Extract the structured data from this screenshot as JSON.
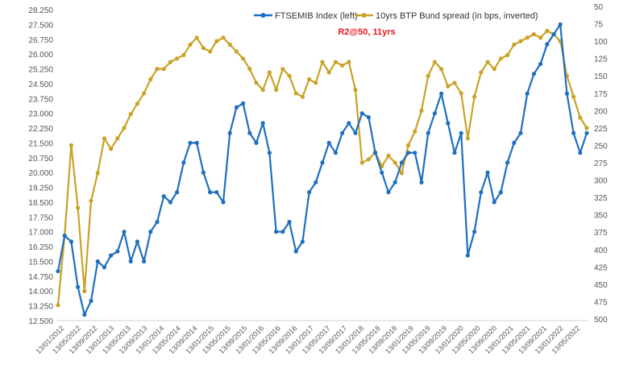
{
  "chart_data": {
    "type": "line",
    "title": "",
    "annotation": "R2@50, 11yrs",
    "x_tick_labels": [
      "13/01/2012",
      "13/05/2012",
      "13/09/2012",
      "13/01/2013",
      "13/05/2013",
      "13/09/2013",
      "13/01/2014",
      "13/05/2014",
      "13/09/2014",
      "13/01/2015",
      "13/05/2015",
      "13/09/2015",
      "13/01/2016",
      "13/05/2016",
      "13/09/2016",
      "13/01/2017",
      "13/05/2017",
      "13/09/2017",
      "13/01/2018",
      "13/05/2018",
      "13/09/2018",
      "13/01/2019",
      "13/05/2019",
      "13/09/2019",
      "13/01/2020",
      "13/05/2020",
      "13/09/2020",
      "13/01/2021",
      "13/05/2021",
      "13/09/2021",
      "13/01/2022",
      "13/05/2022"
    ],
    "y_left": {
      "min": 12500,
      "max": 28250,
      "step": 750,
      "tick_labels": [
        "12.500",
        "13.250",
        "14.000",
        "14.750",
        "15.500",
        "16.250",
        "17.000",
        "17.750",
        "18.500",
        "19.250",
        "20.000",
        "20.750",
        "21.500",
        "22.250",
        "23.000",
        "23.750",
        "24.500",
        "25.250",
        "26.000",
        "26.750",
        "27.500",
        "28.250"
      ]
    },
    "y_right": {
      "min": 50,
      "max": 500,
      "step": 25,
      "inverted": true,
      "tick_labels": [
        "50",
        "75",
        "100",
        "125",
        "150",
        "175",
        "200",
        "225",
        "250",
        "275",
        "300",
        "325",
        "350",
        "375",
        "400",
        "425",
        "450",
        "475",
        "500"
      ]
    },
    "series": [
      {
        "name": "FTSEMIB Index (left)",
        "axis": "left",
        "color": "#1F6FBF",
        "values": [
          15000,
          16800,
          16500,
          14200,
          12800,
          13500,
          15500,
          15200,
          15800,
          16000,
          17000,
          15500,
          16500,
          15500,
          17000,
          17500,
          18800,
          18500,
          19000,
          20500,
          21500,
          21500,
          20000,
          19000,
          19000,
          18500,
          22000,
          23300,
          23500,
          22000,
          21500,
          22500,
          21000,
          17000,
          17000,
          17500,
          16000,
          16500,
          19000,
          19500,
          20500,
          21500,
          21000,
          22000,
          22500,
          22000,
          23000,
          22800,
          21000,
          20000,
          19000,
          19500,
          20500,
          21000,
          21000,
          19500,
          22000,
          23000,
          24000,
          22500,
          21000,
          22000,
          15800,
          17000,
          19000,
          20000,
          18500,
          19000,
          20500,
          21500,
          22000,
          24000,
          25000,
          25500,
          26500,
          27000,
          27500,
          24000,
          22000,
          21000,
          22000
        ]
      },
      {
        "name": "10yrs BTP Bund spread (in bps, inverted)",
        "axis": "right",
        "color": "#C9A227",
        "values": [
          480,
          380,
          250,
          340,
          460,
          330,
          290,
          240,
          255,
          240,
          225,
          205,
          190,
          175,
          155,
          140,
          140,
          130,
          125,
          120,
          105,
          95,
          110,
          115,
          100,
          95,
          105,
          115,
          125,
          140,
          160,
          170,
          145,
          170,
          140,
          150,
          175,
          180,
          155,
          160,
          130,
          145,
          130,
          135,
          130,
          170,
          275,
          270,
          260,
          280,
          265,
          275,
          290,
          250,
          230,
          200,
          150,
          130,
          140,
          165,
          160,
          175,
          240,
          180,
          145,
          130,
          140,
          125,
          120,
          105,
          100,
          95,
          90,
          95,
          85,
          90,
          100,
          150,
          180,
          210,
          225
        ]
      }
    ],
    "legend_position": "top-center",
    "grid": false
  }
}
